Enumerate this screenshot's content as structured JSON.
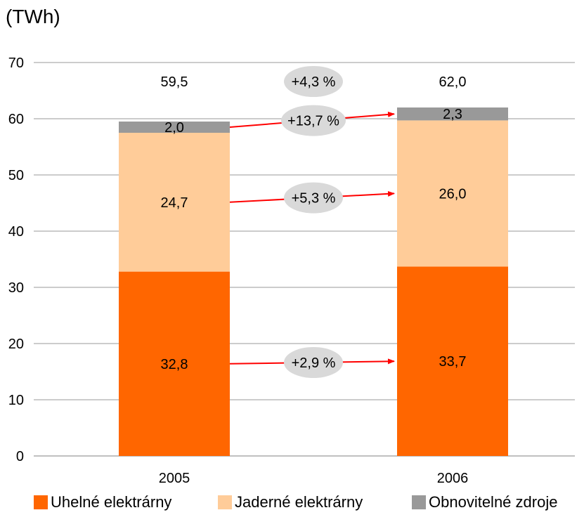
{
  "unit_label": "(TWh)",
  "colors": {
    "uhelne": "#ff6600",
    "jaderne": "#ffcc99",
    "obnovitelne": "#999999",
    "arrow": "#ff0000",
    "ellipse": "#d9d9d9",
    "gridline": "#999999"
  },
  "chart_data": {
    "type": "bar",
    "stacked": true,
    "categories": [
      "2005",
      "2006"
    ],
    "series": [
      {
        "name": "Uhelné elektrárny",
        "values": [
          32.8,
          33.7
        ],
        "labels": [
          "32,8",
          "33,7"
        ],
        "color": "#ff6600"
      },
      {
        "name": "Jaderné elektrárny",
        "values": [
          24.7,
          26.0
        ],
        "labels": [
          "24,7",
          "26,0"
        ],
        "color": "#ffcc99"
      },
      {
        "name": "Obnovitelné zdroje",
        "values": [
          2.0,
          2.3
        ],
        "labels": [
          "2,0",
          "2,3"
        ],
        "color": "#999999"
      }
    ],
    "totals": [
      59.5,
      62.0
    ],
    "total_labels": [
      "59,5",
      "62,0"
    ],
    "changes": [
      {
        "label": "+4,3 %",
        "series": "total"
      },
      {
        "label": "+13,7 %",
        "series": "Obnovitelné zdroje"
      },
      {
        "label": "+5,3 %",
        "series": "Jaderné elektrárny"
      },
      {
        "label": "+2,9 %",
        "series": "Uhelné elektrárny"
      }
    ],
    "ylabel": "(TWh)",
    "ylim": [
      0,
      70
    ],
    "yticks": [
      0,
      10,
      20,
      30,
      40,
      50,
      60,
      70
    ],
    "grid": true,
    "legend_position": "bottom"
  }
}
